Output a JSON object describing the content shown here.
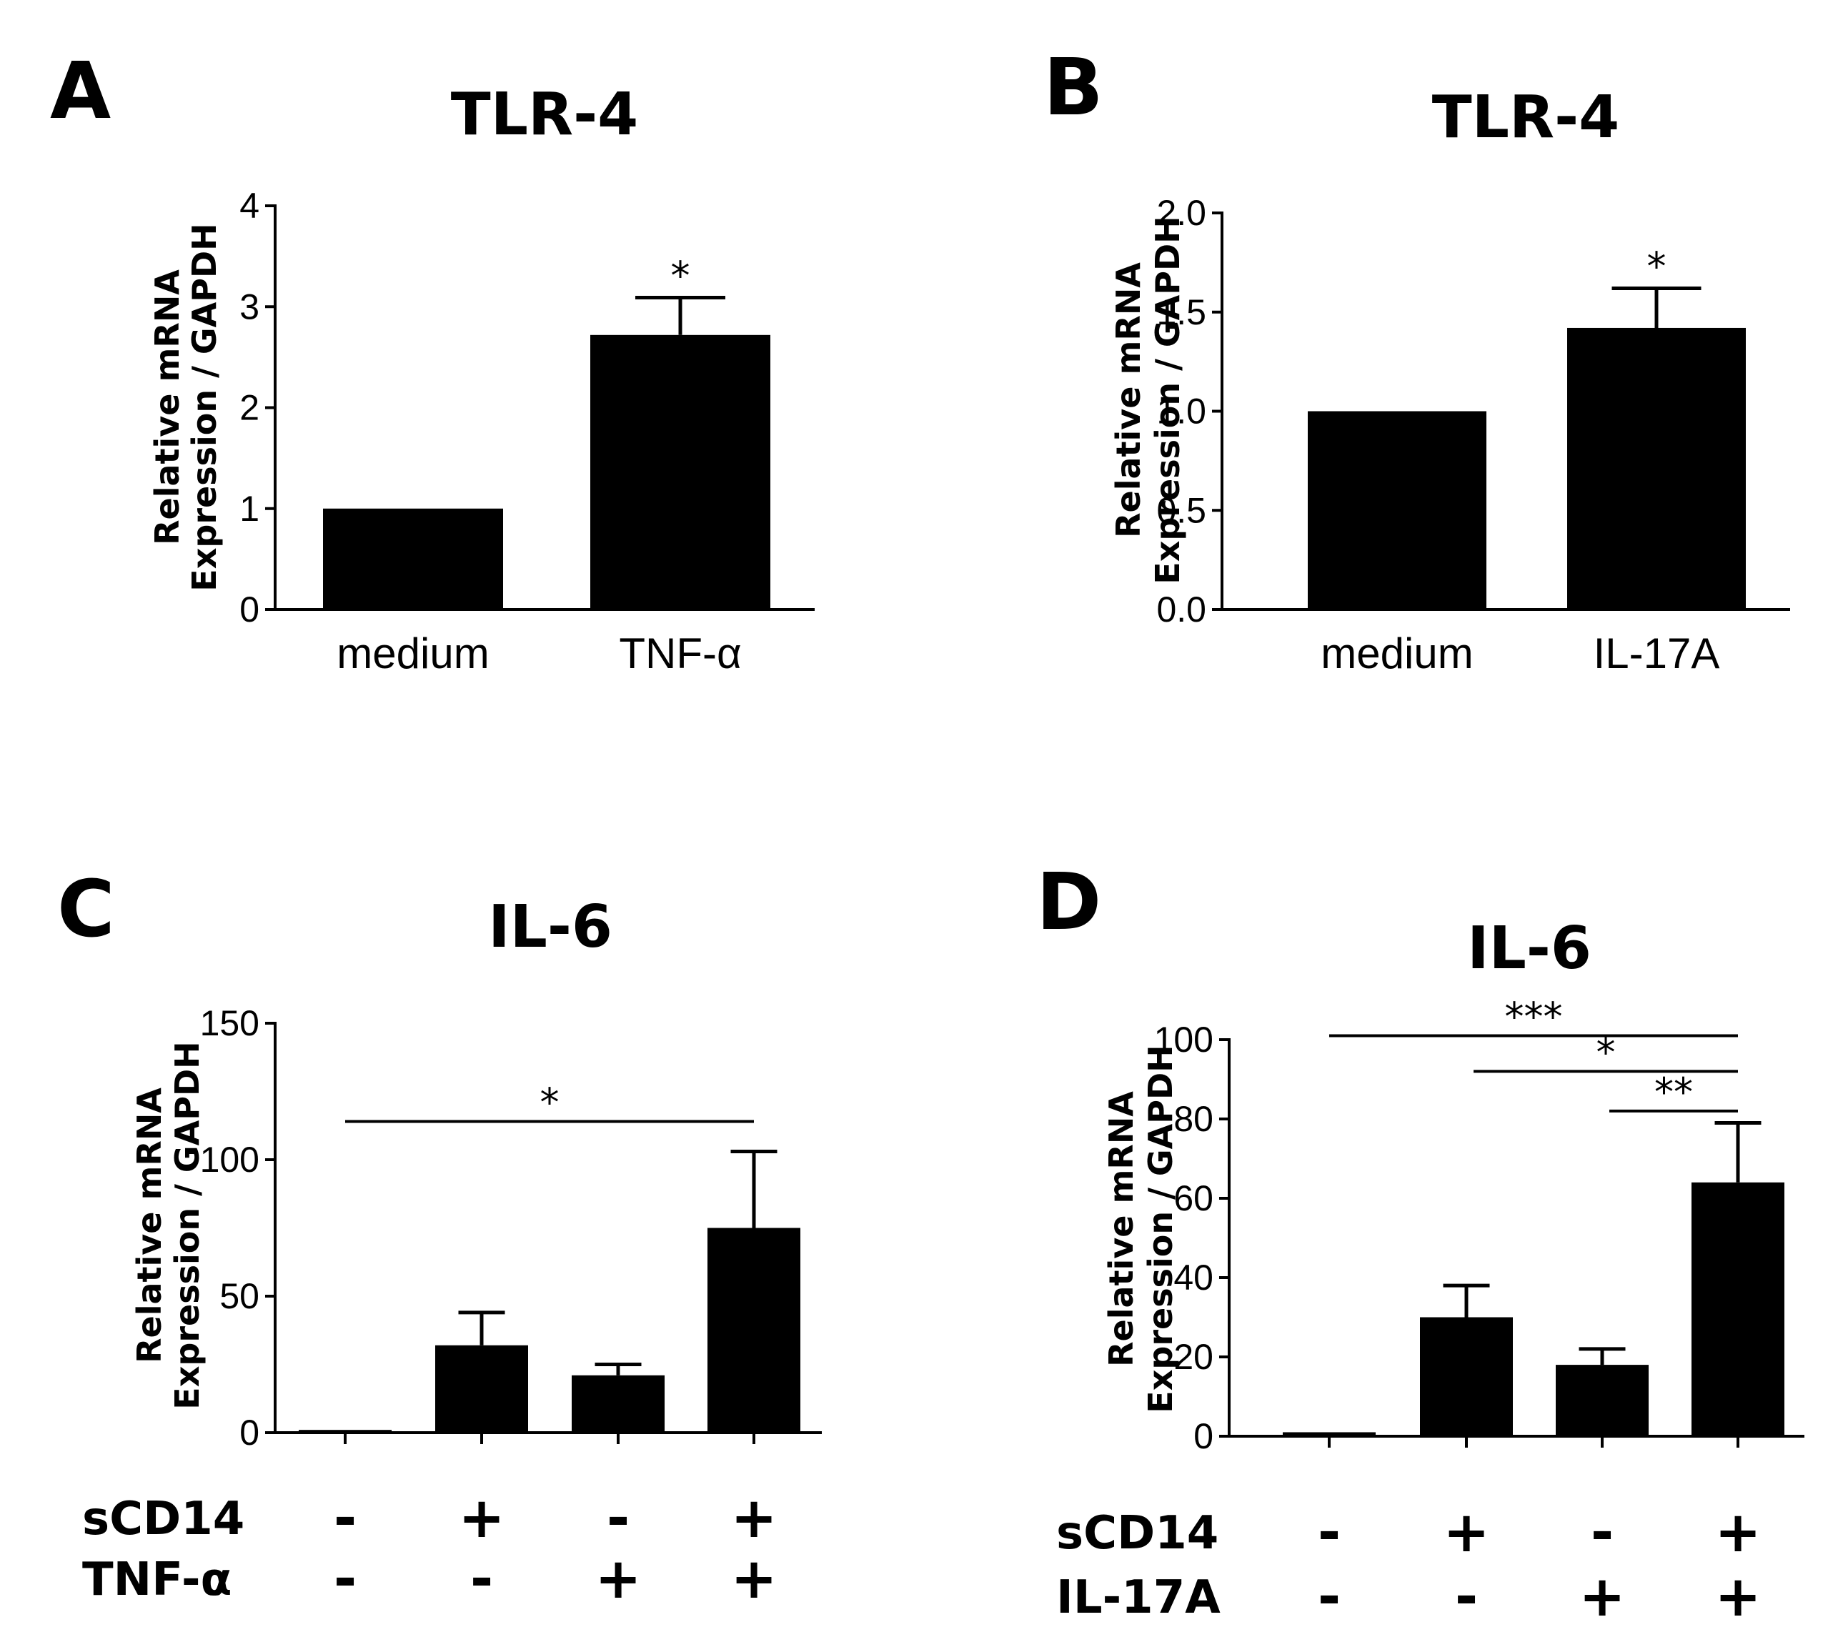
{
  "colors": {
    "bar": "#000000",
    "axis": "#000000",
    "background": "#ffffff"
  },
  "chart_data": [
    {
      "panel": "A",
      "type": "bar",
      "title": "TLR-4",
      "ylabel_line1": "Relative mRNA",
      "ylabel_line2": "Expression / GAPDH",
      "categories": [
        "medium",
        "TNF-α"
      ],
      "values": [
        1.0,
        2.72
      ],
      "errors": [
        0,
        0.37
      ],
      "ylim": [
        0,
        4
      ],
      "yticks": [
        0,
        1,
        2,
        3,
        4
      ],
      "ytick_labels": [
        "0",
        "1",
        "2",
        "3",
        "4"
      ],
      "significance": [
        {
          "label": "*",
          "type": "over_bar",
          "bar": 1
        }
      ],
      "conditions": []
    },
    {
      "panel": "B",
      "type": "bar",
      "title": "TLR-4",
      "ylabel_line1": "Relative mRNA",
      "ylabel_line2": "Expression / GAPDH",
      "categories": [
        "medium",
        "IL-17A"
      ],
      "values": [
        1.0,
        1.42
      ],
      "errors": [
        0,
        0.2
      ],
      "ylim": [
        0,
        2.0
      ],
      "yticks": [
        0,
        0.5,
        1.0,
        1.5,
        2.0
      ],
      "ytick_labels": [
        "0.0",
        "0.5",
        "1.0",
        "1.5",
        "2.0"
      ],
      "significance": [
        {
          "label": "*",
          "type": "over_bar",
          "bar": 1
        }
      ],
      "conditions": []
    },
    {
      "panel": "C",
      "type": "bar",
      "title": "IL-6",
      "ylabel_line1": "Relative mRNA",
      "ylabel_line2": "Expression / GAPDH",
      "categories": [
        "",
        "",
        "",
        ""
      ],
      "values": [
        1,
        32,
        21,
        75
      ],
      "errors": [
        0,
        12,
        4,
        28
      ],
      "ylim": [
        0,
        150
      ],
      "yticks": [
        0,
        50,
        100,
        150
      ],
      "ytick_labels": [
        "0",
        "50",
        "100",
        "150"
      ],
      "significance": [
        {
          "label": "*",
          "type": "bracket",
          "from": 0,
          "to": 3,
          "y": 114
        }
      ],
      "conditions": [
        {
          "name": "sCD14",
          "signs": [
            "-",
            "+",
            "-",
            "+"
          ]
        },
        {
          "name": "TNF-α",
          "signs": [
            "-",
            "-",
            "+",
            "+"
          ]
        }
      ]
    },
    {
      "panel": "D",
      "type": "bar",
      "title": "IL-6",
      "ylabel_line1": "Relative mRNA",
      "ylabel_line2": "Expression / GAPDH",
      "categories": [
        "",
        "",
        "",
        ""
      ],
      "values": [
        1,
        30,
        18,
        64
      ],
      "errors": [
        0,
        8,
        4,
        15
      ],
      "ylim": [
        0,
        100
      ],
      "yticks": [
        0,
        20,
        40,
        60,
        80,
        100
      ],
      "ytick_labels": [
        "0",
        "20",
        "40",
        "60",
        "80",
        "100"
      ],
      "significance": [
        {
          "label": "***",
          "type": "bracket",
          "from": 0,
          "to": 3,
          "y": 101
        },
        {
          "label": "*",
          "type": "bracket",
          "from": 1,
          "to": 3,
          "y": 92
        },
        {
          "label": "**",
          "type": "bracket",
          "from": 2,
          "to": 3,
          "y": 82
        }
      ],
      "conditions": [
        {
          "name": "sCD14",
          "signs": [
            "-",
            "+",
            "-",
            "+"
          ]
        },
        {
          "name": "IL-17A",
          "signs": [
            "-",
            "-",
            "+",
            "+"
          ]
        }
      ]
    }
  ]
}
